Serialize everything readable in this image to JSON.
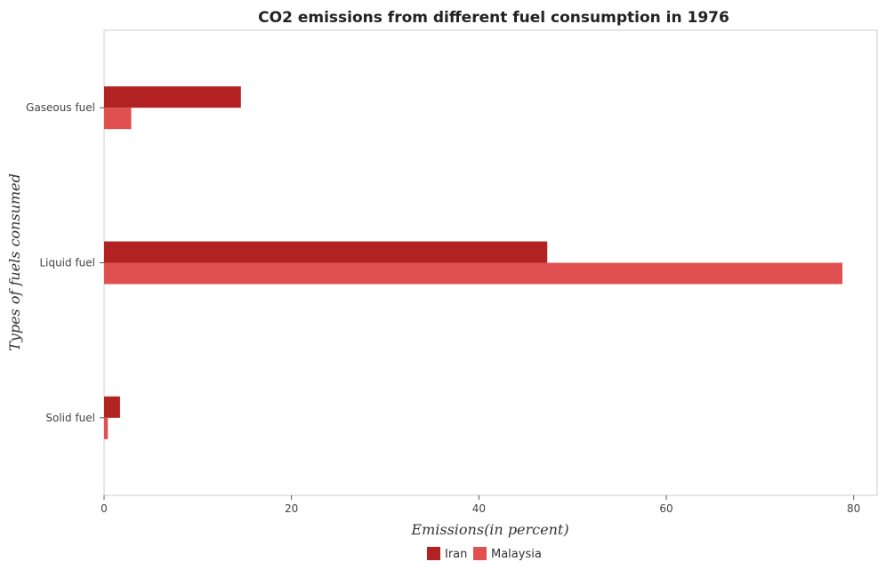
{
  "chart_data": {
    "type": "bar",
    "orientation": "horizontal",
    "title": "CO2 emissions from different fuel consumption in 1976",
    "xlabel": "Emissions(in percent)",
    "ylabel": "Types of fuels consumed",
    "categories": [
      "Gaseous fuel",
      "Liquid fuel",
      "Solid fuel"
    ],
    "series": [
      {
        "name": "Iran",
        "color": "#b22222",
        "values": [
          14.6,
          47.3,
          1.7
        ]
      },
      {
        "name": "Malaysia",
        "color": "#e05050",
        "values": [
          2.9,
          78.8,
          0.4
        ]
      }
    ],
    "xlim": [
      0,
      82.5
    ],
    "xticks": [
      0,
      20,
      40,
      60,
      80
    ],
    "grid": false,
    "legend_position": "bottom-center"
  }
}
